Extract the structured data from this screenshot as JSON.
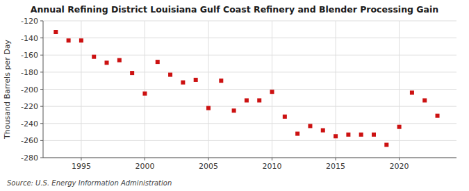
{
  "chart_data": {
    "type": "scatter",
    "title": "Annual Refining District Louisiana Gulf Coast Refinery and Blender Processing Gain",
    "y_label": "Thousand Barrels per Day",
    "annotation": "Source: U.S. Energy Information Administration",
    "x": [
      1993,
      1994,
      1995,
      1996,
      1997,
      1998,
      1999,
      2000,
      2001,
      2002,
      2003,
      2004,
      2005,
      2006,
      2007,
      2008,
      2009,
      2010,
      2011,
      2012,
      2013,
      2014,
      2015,
      2016,
      2017,
      2018,
      2019,
      2020,
      2021,
      2022,
      2023
    ],
    "values": [
      -133,
      -143,
      -143,
      -162,
      -169,
      -166,
      -181,
      -205,
      -168,
      -183,
      -192,
      -189,
      -222,
      -190,
      -225,
      -213,
      -213,
      -203,
      -232,
      -252,
      -243,
      -248,
      -255,
      -253,
      -253,
      -253,
      -265,
      -244,
      -204,
      -213,
      -231
    ],
    "color": "#cc1111",
    "marker": "square",
    "xlim": [
      1992,
      2024.5
    ],
    "ylim": [
      -280,
      -120
    ],
    "xticks": [
      1995,
      2000,
      2005,
      2010,
      2015,
      2020
    ],
    "yticks": [
      -280,
      -260,
      -240,
      -220,
      -200,
      -180,
      -160,
      -140,
      -120
    ],
    "grid": true
  }
}
